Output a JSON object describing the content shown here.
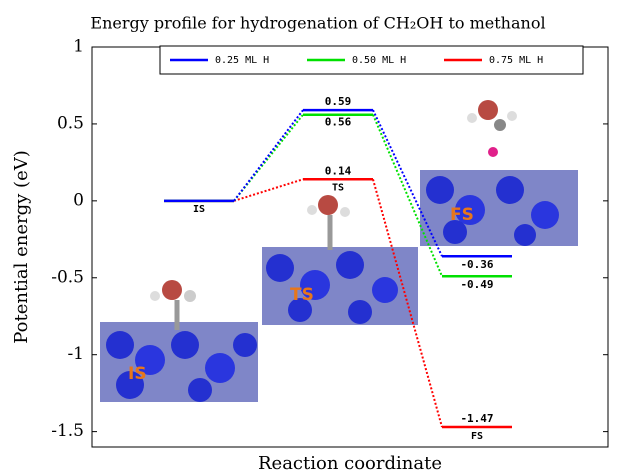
{
  "chart_data": {
    "type": "profile",
    "title": "Energy profile for hydrogenation of CH₂OH to methanol",
    "ylabel": "Potential energy (eV)",
    "xlabel": "Reaction coordinate",
    "categories": [
      "IS",
      "TS",
      "FS"
    ],
    "series": [
      {
        "name": "0.25 ML H",
        "color": "#0000ff",
        "values": [
          0,
          0.59,
          -0.36
        ]
      },
      {
        "name": "0.50 ML H",
        "color": "#00e000",
        "values": [
          0,
          0.56,
          -0.49
        ]
      },
      {
        "name": "0.75 ML H",
        "color": "#ff0000",
        "values": [
          0,
          0.14,
          -1.47
        ]
      }
    ],
    "ylim": [
      -1.6,
      1
    ],
    "yticks": [
      -1.5,
      -1,
      -0.5,
      0,
      0.5,
      1
    ],
    "legend": "top"
  }
}
